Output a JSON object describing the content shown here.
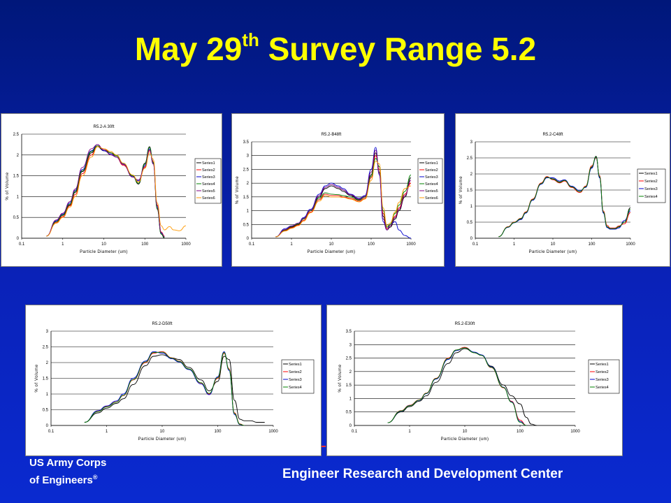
{
  "slide": {
    "title_main": "May 29",
    "title_sup": "th",
    "title_rest": " Survey Range 5.2"
  },
  "footer": {
    "org_line1": "US Army Corps",
    "org_line2": "of Engineers",
    "org_mark": "®",
    "center_text": "Engineer Research and Development Center"
  },
  "chart_data": [
    {
      "type": "line",
      "title": "R5.2-A 30ft",
      "xlabel": "Particle Diameter (um)",
      "ylabel": "% of Volume",
      "x_scale": "log",
      "xlim": [
        0.1,
        1000
      ],
      "xticks": [
        "0.1",
        "1",
        "10",
        "100",
        "1000"
      ],
      "ylim": [
        0,
        2.5
      ],
      "yticks": [
        "0",
        "0.5",
        "1",
        "1.5",
        "2",
        "2.5"
      ],
      "grid": "horizontal",
      "legend": "right",
      "x": [
        0.4,
        0.7,
        1,
        1.5,
        2,
        3,
        5,
        7,
        10,
        15,
        20,
        30,
        50,
        70,
        100,
        130,
        160,
        200,
        250,
        300,
        400,
        500,
        700,
        1000
      ],
      "series": [
        {
          "name": "Series1",
          "values": [
            0.05,
            0.4,
            0.55,
            0.8,
            1.1,
            1.6,
            2.05,
            2.2,
            2.1,
            2.05,
            2.0,
            1.8,
            1.5,
            1.3,
            1.8,
            2.2,
            1.8,
            0.7,
            0.1,
            0.0,
            null,
            null,
            null,
            null
          ]
        },
        {
          "name": "Series2",
          "values": [
            0.05,
            0.38,
            0.52,
            0.78,
            1.05,
            1.55,
            2.0,
            2.2,
            2.15,
            2.05,
            1.95,
            1.75,
            1.5,
            1.35,
            1.7,
            2.1,
            1.85,
            0.8,
            0.15,
            0.05,
            null,
            null,
            null,
            null
          ]
        },
        {
          "name": "Series3",
          "values": [
            0.05,
            0.42,
            0.58,
            0.85,
            1.15,
            1.65,
            2.1,
            2.25,
            2.1,
            2.02,
            1.95,
            1.78,
            1.48,
            1.38,
            1.75,
            2.15,
            1.8,
            0.75,
            0.12,
            0.03,
            null,
            null,
            null,
            null
          ]
        },
        {
          "name": "Series4",
          "values": [
            0.05,
            0.4,
            0.56,
            0.82,
            1.12,
            1.62,
            2.08,
            2.22,
            2.12,
            2.05,
            1.98,
            1.8,
            1.5,
            1.32,
            1.78,
            2.18,
            1.82,
            0.72,
            0.1,
            0.02,
            null,
            null,
            null,
            null
          ]
        },
        {
          "name": "Series5",
          "values": [
            0.05,
            0.44,
            0.6,
            0.88,
            1.18,
            1.7,
            2.15,
            2.25,
            2.12,
            2.0,
            1.95,
            1.77,
            1.47,
            1.4,
            1.72,
            2.12,
            1.78,
            0.78,
            0.14,
            0.04,
            null,
            null,
            null,
            null
          ]
        },
        {
          "name": "Series6",
          "values": [
            0.05,
            0.36,
            0.5,
            0.75,
            1.0,
            1.5,
            1.95,
            2.2,
            2.15,
            2.08,
            2.0,
            1.8,
            1.52,
            1.35,
            1.68,
            2.05,
            1.9,
            0.85,
            0.3,
            0.2,
            0.28,
            0.2,
            0.18,
            0.3
          ]
        }
      ],
      "series_colors": [
        "#000000",
        "#ff0000",
        "#0000cc",
        "#008000",
        "#800080",
        "#ff9900"
      ]
    },
    {
      "type": "line",
      "title": "R5.2-B48ft",
      "xlabel": "Particle Diameter (um)",
      "ylabel": "% of Volume",
      "x_scale": "log",
      "xlim": [
        0.1,
        1000
      ],
      "xticks": [
        "0.1",
        "1",
        "10",
        "100",
        "1000"
      ],
      "ylim": [
        0,
        3.5
      ],
      "yticks": [
        "0",
        "0.5",
        "1",
        "1.5",
        "2",
        "2.5",
        "3",
        "3.5"
      ],
      "grid": "horizontal",
      "legend": "right",
      "x": [
        0.4,
        0.7,
        1,
        1.5,
        2,
        3,
        5,
        7,
        10,
        15,
        20,
        30,
        50,
        70,
        100,
        130,
        160,
        200,
        250,
        300,
        400,
        500,
        700,
        1000
      ],
      "series": [
        {
          "name": "Series1",
          "values": [
            0.05,
            0.3,
            0.4,
            0.5,
            0.7,
            1.0,
            1.5,
            1.8,
            1.9,
            1.8,
            1.7,
            1.55,
            1.4,
            1.5,
            2.3,
            3.1,
            2.4,
            0.8,
            0.3,
            0.4,
            0.7,
            1.0,
            1.5,
            2.2
          ]
        },
        {
          "name": "Series2",
          "values": [
            0.05,
            0.28,
            0.38,
            0.48,
            0.65,
            0.95,
            1.4,
            1.6,
            1.55,
            1.55,
            1.5,
            1.45,
            1.35,
            1.45,
            2.2,
            3.0,
            2.5,
            0.9,
            0.35,
            0.45,
            0.8,
            1.1,
            1.6,
            2.0
          ]
        },
        {
          "name": "Series3",
          "values": [
            0.05,
            0.35,
            0.45,
            0.55,
            0.75,
            1.05,
            1.6,
            1.9,
            2.0,
            1.9,
            1.8,
            1.6,
            1.45,
            1.55,
            2.5,
            3.3,
            2.3,
            0.6,
            0.3,
            0.5,
            0.6,
            0.3,
            0.1,
            0.0
          ]
        },
        {
          "name": "Series4",
          "values": [
            0.05,
            0.3,
            0.42,
            0.52,
            0.7,
            1.0,
            1.45,
            1.65,
            1.6,
            1.58,
            1.55,
            1.5,
            1.38,
            1.5,
            2.25,
            2.9,
            2.6,
            1.0,
            0.4,
            0.5,
            0.9,
            1.2,
            1.7,
            2.3
          ]
        },
        {
          "name": "Series5",
          "values": [
            0.05,
            0.32,
            0.44,
            0.55,
            0.72,
            1.02,
            1.55,
            1.85,
            1.95,
            1.85,
            1.75,
            1.58,
            1.42,
            1.52,
            2.4,
            3.2,
            2.35,
            0.7,
            0.3,
            0.45,
            0.75,
            1.05,
            1.55,
            2.1
          ]
        },
        {
          "name": "Series6",
          "values": [
            0.05,
            0.26,
            0.36,
            0.46,
            0.62,
            0.92,
            1.35,
            1.55,
            1.5,
            1.5,
            1.48,
            1.42,
            1.32,
            1.42,
            2.1,
            2.8,
            2.7,
            1.1,
            0.45,
            0.55,
            0.95,
            1.3,
            1.8,
            1.9
          ]
        }
      ],
      "series_colors": [
        "#000000",
        "#ff0000",
        "#0000cc",
        "#008000",
        "#800080",
        "#ff9900"
      ]
    },
    {
      "type": "line",
      "title": "R5.2-C48ft",
      "xlabel": "Particle Diameter (um)",
      "ylabel": "% of Volume",
      "x_scale": "log",
      "xlim": [
        0.1,
        1000
      ],
      "xticks": [
        "0.1",
        "1",
        "10",
        "100",
        "1000"
      ],
      "ylim": [
        0,
        3
      ],
      "yticks": [
        "0",
        "0.5",
        "1",
        "1.5",
        "2",
        "2.5",
        "3"
      ],
      "grid": "horizontal",
      "legend": "right",
      "x": [
        0.4,
        0.7,
        1,
        1.5,
        2,
        3,
        5,
        7,
        10,
        15,
        20,
        30,
        50,
        70,
        100,
        130,
        160,
        200,
        250,
        300,
        400,
        500,
        700,
        1000
      ],
      "series": [
        {
          "name": "Series1",
          "values": [
            0.05,
            0.35,
            0.5,
            0.6,
            0.8,
            1.2,
            1.7,
            1.9,
            1.85,
            1.75,
            1.8,
            1.6,
            1.45,
            1.6,
            2.2,
            2.55,
            1.9,
            0.8,
            0.35,
            0.3,
            0.3,
            0.35,
            0.5,
            0.95
          ]
        },
        {
          "name": "Series2",
          "values": [
            0.05,
            0.36,
            0.5,
            0.62,
            0.82,
            1.22,
            1.72,
            1.92,
            1.82,
            1.72,
            1.78,
            1.58,
            1.42,
            1.62,
            2.25,
            2.5,
            1.95,
            0.85,
            0.4,
            0.32,
            0.32,
            0.38,
            0.45,
            0.8
          ]
        },
        {
          "name": "Series3",
          "values": [
            0.05,
            0.34,
            0.48,
            0.58,
            0.78,
            1.18,
            1.68,
            1.88,
            1.88,
            1.78,
            1.82,
            1.62,
            1.48,
            1.58,
            2.18,
            2.52,
            1.88,
            0.78,
            0.33,
            0.28,
            0.28,
            0.32,
            0.55,
            0.85
          ]
        },
        {
          "name": "Series4",
          "values": [
            0.05,
            0.35,
            0.49,
            0.61,
            0.8,
            1.2,
            1.7,
            1.9,
            1.84,
            1.74,
            1.8,
            1.6,
            1.45,
            1.6,
            2.22,
            2.53,
            1.92,
            0.82,
            0.36,
            0.3,
            0.3,
            0.36,
            0.5,
            0.9
          ]
        }
      ],
      "series_colors": [
        "#000000",
        "#ff0000",
        "#0000cc",
        "#008000"
      ]
    },
    {
      "type": "line",
      "title": "R5.2-D50ft",
      "xlabel": "Particle Diameter (um)",
      "ylabel": "% of Volume",
      "x_scale": "log",
      "xlim": [
        0.1,
        1000
      ],
      "xticks": [
        "0.1",
        "1",
        "10",
        "100",
        "1000"
      ],
      "ylim": [
        0,
        3
      ],
      "yticks": [
        "0",
        "0.5",
        "1",
        "1.5",
        "2",
        "2.5",
        "3"
      ],
      "grid": "horizontal",
      "legend": "right",
      "x": [
        0.4,
        0.7,
        1,
        1.5,
        2,
        3,
        5,
        7,
        10,
        15,
        20,
        30,
        50,
        70,
        100,
        130,
        160,
        200,
        250,
        300,
        400,
        500,
        700,
        1000
      ],
      "series": [
        {
          "name": "Series1",
          "values": [
            0.1,
            0.4,
            0.55,
            0.7,
            0.85,
            1.3,
            1.9,
            2.2,
            2.25,
            2.15,
            2.1,
            1.85,
            1.45,
            1.1,
            1.4,
            2.2,
            2.1,
            0.8,
            0.2,
            0.15,
            0.15,
            0.1,
            0.1,
            null
          ]
        },
        {
          "name": "Series2",
          "values": [
            0.1,
            0.45,
            0.6,
            0.75,
            0.95,
            1.45,
            2.0,
            2.3,
            2.35,
            2.15,
            2.05,
            1.8,
            1.35,
            1.0,
            1.5,
            2.3,
            1.8,
            0.4,
            0.05,
            0.0,
            null,
            null,
            null,
            null
          ]
        },
        {
          "name": "Series3",
          "values": [
            0.1,
            0.47,
            0.62,
            0.78,
            1.0,
            1.5,
            2.05,
            2.35,
            2.3,
            2.12,
            2.02,
            1.78,
            1.32,
            0.98,
            1.55,
            2.35,
            1.75,
            0.35,
            0.03,
            0.0,
            null,
            null,
            null,
            null
          ]
        },
        {
          "name": "Series4",
          "values": [
            0.1,
            0.44,
            0.59,
            0.74,
            0.96,
            1.46,
            2.02,
            2.32,
            2.33,
            2.14,
            2.04,
            1.8,
            1.36,
            1.02,
            1.52,
            2.32,
            1.78,
            0.38,
            0.04,
            0.0,
            null,
            null,
            null,
            null
          ]
        }
      ],
      "series_colors": [
        "#000000",
        "#ff0000",
        "#0000cc",
        "#008000"
      ]
    },
    {
      "type": "line",
      "title": "R5.2-E30ft",
      "xlabel": "Particle Diameter (um)",
      "ylabel": "% of Volume",
      "x_scale": "log",
      "xlim": [
        0.1,
        1000
      ],
      "xticks": [
        "0.1",
        "1",
        "10",
        "100",
        "1000"
      ],
      "ylim": [
        0,
        3.5
      ],
      "yticks": [
        "0",
        "0.5",
        "1",
        "1.5",
        "2",
        "2.5",
        "3",
        "3.5"
      ],
      "grid": "horizontal",
      "legend": "right",
      "x": [
        0.4,
        0.7,
        1,
        1.5,
        2,
        3,
        5,
        7,
        10,
        15,
        20,
        30,
        50,
        70,
        100,
        130,
        160,
        200
      ],
      "series": [
        {
          "name": "Series1",
          "values": [
            0.1,
            0.5,
            0.7,
            0.9,
            1.1,
            1.6,
            2.3,
            2.7,
            2.85,
            2.7,
            2.6,
            2.2,
            1.5,
            1.1,
            0.8,
            0.3,
            0.05,
            0.0
          ]
        },
        {
          "name": "Series2",
          "values": [
            0.1,
            0.55,
            0.75,
            0.95,
            1.2,
            1.75,
            2.5,
            2.8,
            2.9,
            2.7,
            2.6,
            2.15,
            1.4,
            0.9,
            0.2,
            0.0,
            null,
            null
          ]
        },
        {
          "name": "Series3",
          "values": [
            0.1,
            0.53,
            0.74,
            0.93,
            1.18,
            1.72,
            2.45,
            2.78,
            2.88,
            2.72,
            2.62,
            2.18,
            1.42,
            0.88,
            0.15,
            0.0,
            null,
            null
          ]
        },
        {
          "name": "Series4",
          "values": [
            0.1,
            0.54,
            0.73,
            0.94,
            1.19,
            1.74,
            2.48,
            2.8,
            2.88,
            2.7,
            2.6,
            2.16,
            1.41,
            0.86,
            0.12,
            0.0,
            null,
            null
          ]
        }
      ],
      "series_colors": [
        "#000000",
        "#ff0000",
        "#0000cc",
        "#008000"
      ]
    }
  ]
}
